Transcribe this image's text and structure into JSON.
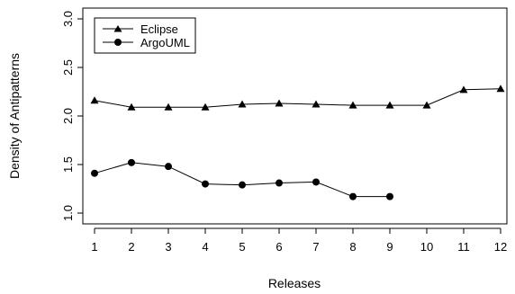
{
  "chart_data": {
    "type": "line",
    "xlabel": "Releases",
    "ylabel": "Density of Antipatterns",
    "x": [
      1,
      2,
      3,
      4,
      5,
      6,
      7,
      8,
      9,
      10,
      11,
      12
    ],
    "xtick_labels": [
      "1",
      "2",
      "3",
      "4",
      "5",
      "6",
      "7",
      "8",
      "9",
      "10",
      "11",
      "12"
    ],
    "xlim": [
      1,
      12
    ],
    "ylim": [
      1.0,
      3.0
    ],
    "yticks": [
      1.0,
      1.5,
      2.0,
      2.5,
      3.0
    ],
    "ytick_labels": [
      "1.0",
      "1.5",
      "2.0",
      "2.5",
      "3.0"
    ],
    "grid": false,
    "legend_position": "top-left",
    "series": [
      {
        "name": "Eclipse",
        "marker": "triangle",
        "x": [
          1,
          2,
          3,
          4,
          5,
          6,
          7,
          8,
          9,
          10,
          11,
          12
        ],
        "values": [
          2.16,
          2.09,
          2.09,
          2.09,
          2.12,
          2.13,
          2.12,
          2.11,
          2.11,
          2.11,
          2.27,
          2.28
        ]
      },
      {
        "name": "ArgoUML",
        "marker": "circle",
        "x": [
          1,
          2,
          3,
          4,
          5,
          6,
          7,
          8,
          9
        ],
        "values": [
          1.41,
          1.52,
          1.48,
          1.3,
          1.29,
          1.31,
          1.32,
          1.17,
          1.17
        ]
      }
    ]
  }
}
